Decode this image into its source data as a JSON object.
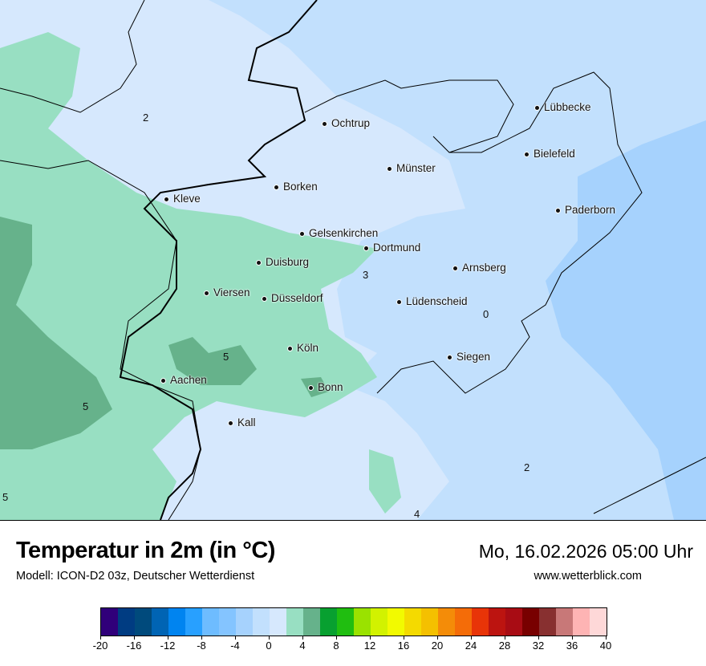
{
  "header": {
    "title": "Temperatur in 2m (in °C)",
    "model": "Modell: ICON-D2 03z, Deutscher Wetterdienst",
    "datetime": "Mo, 16.02.2026 05:00 Uhr",
    "website": "www.wetterblick.com"
  },
  "map": {
    "cities": [
      "Lübbecke",
      "Ochtrup",
      "Bielefeld",
      "Münster",
      "Borken",
      "Kleve",
      "Paderborn",
      "Gelsenkirchen",
      "Dortmund",
      "Duisburg",
      "Arnsberg",
      "Viersen",
      "Düsseldorf",
      "Lüdenscheid",
      "Köln",
      "Siegen",
      "Aachen",
      "Bonn",
      "Kall"
    ],
    "contour_labels": [
      "2",
      "3",
      "0",
      "5",
      "5",
      "2",
      "5",
      "4"
    ],
    "colors": {
      "band_0_2": "#d6e8fd",
      "band_m2_0": "#c2e0fd",
      "band_m4_m2": "#a6d2fd",
      "band_2_4": "#98dfc2",
      "band_4_6": "#66b28b"
    }
  },
  "legend": {
    "ticks": [
      "-20",
      "-16",
      "-12",
      "-8",
      "-4",
      "0",
      "4",
      "8",
      "12",
      "16",
      "20",
      "24",
      "28",
      "32",
      "36",
      "40"
    ],
    "colors": [
      "#30007a",
      "#003c82",
      "#004a7c",
      "#0064b4",
      "#0084f0",
      "#28a0ff",
      "#6ebcff",
      "#84c4ff",
      "#a6d2fd",
      "#c2e0fd",
      "#d6e8fd",
      "#98dfc2",
      "#66b28b",
      "#08a030",
      "#20be10",
      "#9ae200",
      "#d2f200",
      "#f2fa00",
      "#f4da00",
      "#f4c000",
      "#f48c08",
      "#f46c08",
      "#e83408",
      "#bc1410",
      "#a80c14",
      "#780000",
      "#883030",
      "#c87878",
      "#feb4b4",
      "#fed8d8"
    ]
  }
}
